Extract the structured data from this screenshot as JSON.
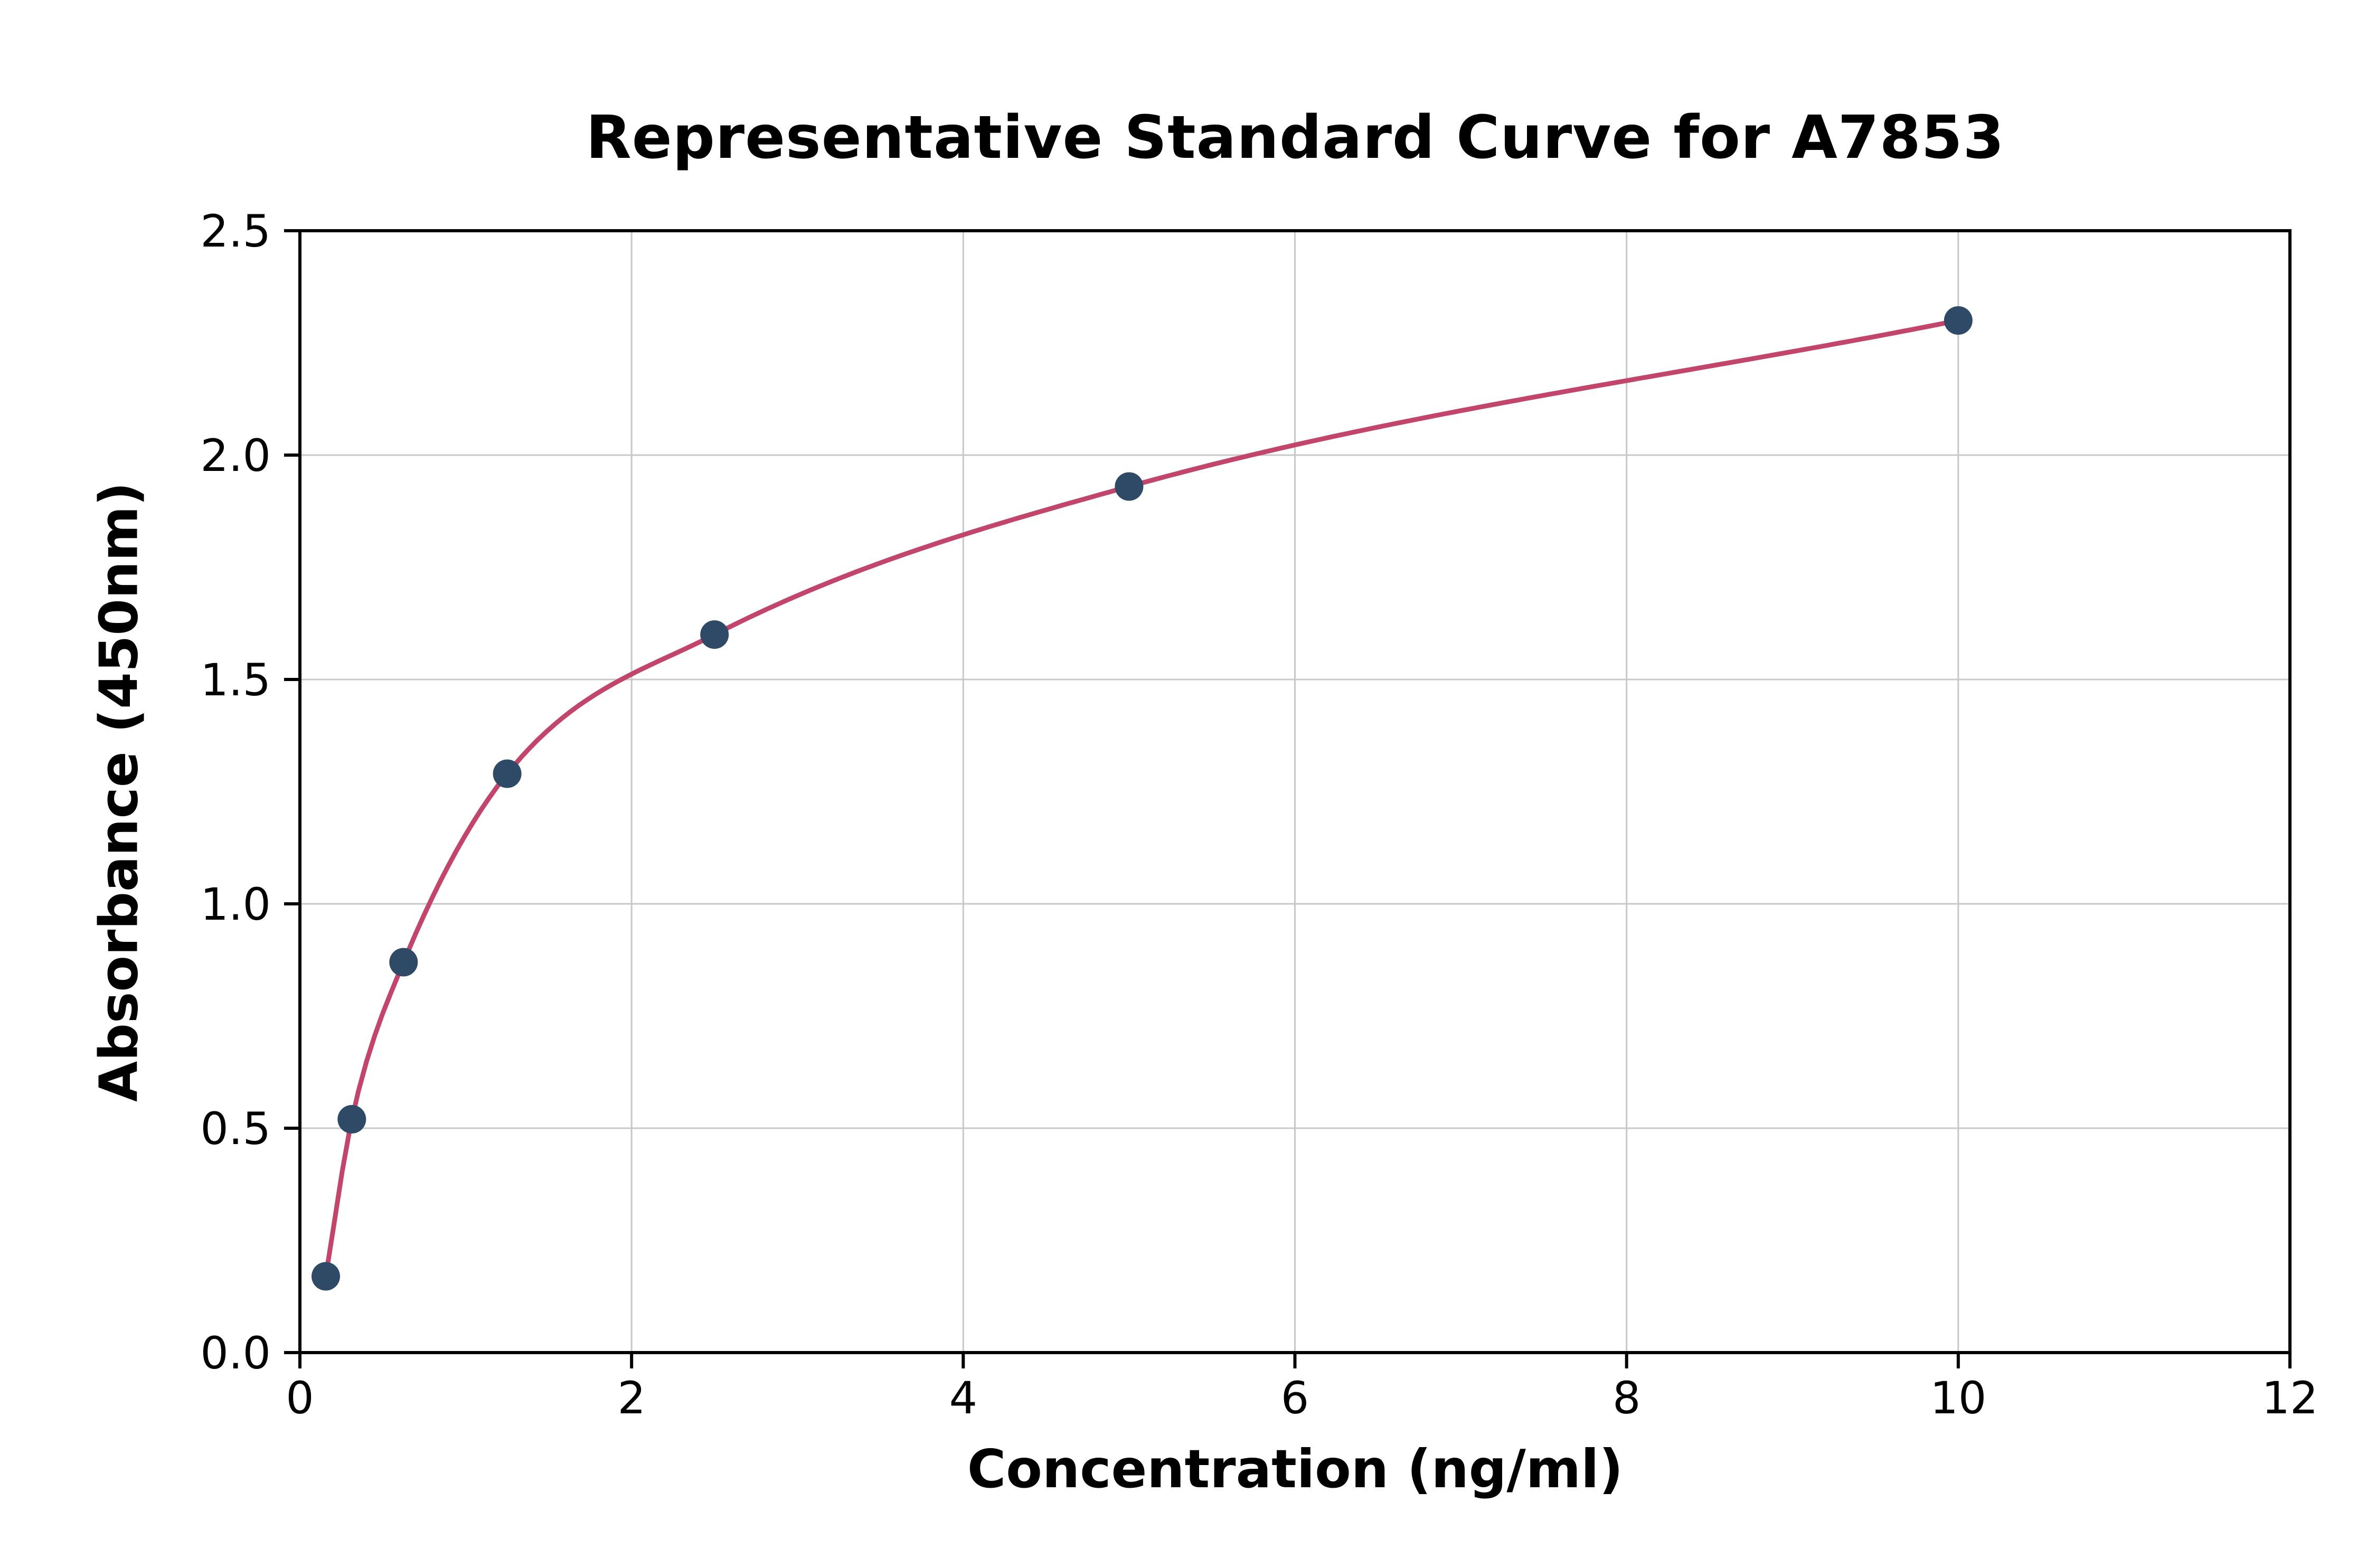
{
  "figure": {
    "title": "Representative Standard Curve for A7853",
    "xlabel": "Concentration (ng/ml)",
    "ylabel": "Absorbance (450nm)"
  },
  "chart_data": {
    "type": "scatter",
    "title": "Representative Standard Curve for A7853",
    "xlabel": "Concentration (ng/ml)",
    "ylabel": "Absorbance (450nm)",
    "x": [
      0.156,
      0.313,
      0.625,
      1.25,
      2.5,
      5,
      10
    ],
    "y": [
      0.17,
      0.52,
      0.87,
      1.29,
      1.6,
      1.93,
      2.3
    ],
    "curve": "smooth logarithmic fit through the data points",
    "xlim": [
      0,
      12
    ],
    "ylim": [
      0,
      2.5
    ],
    "xticks": [
      0,
      2,
      4,
      6,
      8,
      10,
      12
    ],
    "xtick_labels": [
      "0",
      "2",
      "4",
      "6",
      "8",
      "10",
      "12"
    ],
    "yticks": [
      0,
      0.5,
      1.0,
      1.5,
      2.0,
      2.5
    ],
    "ytick_labels": [
      "0.0",
      "0.5",
      "1.0",
      "1.5",
      "2.0",
      "2.5"
    ],
    "grid": true,
    "legend": "none",
    "colors": {
      "point": "#2e4a66",
      "curve": "#c2466b",
      "grid": "#c8c8c8",
      "spine": "#000000",
      "tick_label": "#000000"
    }
  }
}
